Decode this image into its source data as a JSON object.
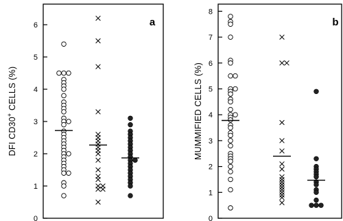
{
  "chart_data": [
    {
      "type": "scatter",
      "panel_label": "a",
      "ylabel_main": "DFI  CD30",
      "ylabel_sup": "+",
      "ylabel_rest": " CELLS  (%)",
      "ylim": [
        0,
        6.5
      ],
      "yticks": [
        "0",
        "1",
        "2",
        "3",
        "4",
        "5",
        "6"
      ],
      "grid": false,
      "series": [
        {
          "marker": "circle-open",
          "values": [
            5.4,
            4.5,
            4.5,
            4.5,
            4.3,
            4.2,
            4.1,
            4.0,
            3.8,
            3.6,
            3.5,
            3.4,
            3.3,
            3.1,
            3.0,
            3.0,
            2.9,
            2.7,
            2.6,
            2.5,
            2.4,
            2.3,
            2.2,
            2.1,
            2.0,
            2.0,
            1.9,
            1.8,
            1.7,
            1.6,
            1.5,
            1.4,
            1.4,
            1.1,
            1.0,
            0.7
          ],
          "mean": 2.72
        },
        {
          "marker": "cross",
          "values": [
            6.2,
            5.5,
            4.7,
            3.3,
            2.6,
            2.5,
            2.4,
            2.3,
            2.2,
            2.1,
            2.0,
            1.8,
            1.5,
            1.3,
            1.2,
            1.0,
            1.0,
            0.9,
            0.9,
            0.5
          ],
          "mean": 2.27
        },
        {
          "marker": "circle-filled",
          "values": [
            3.1,
            2.9,
            2.7,
            2.6,
            2.5,
            2.4,
            2.3,
            2.2,
            2.1,
            2.0,
            1.9,
            1.8,
            1.8,
            1.7,
            1.6,
            1.5,
            1.4,
            1.3,
            1.2,
            1.1,
            1.0,
            0.7
          ],
          "mean": 1.87
        }
      ]
    },
    {
      "type": "scatter",
      "panel_label": "b",
      "ylabel_main": "MUMMIFIED  CELLS  (%)",
      "ylim": [
        0,
        8.1
      ],
      "yticks": [
        "0",
        "1",
        "2",
        "3",
        "4",
        "5",
        "6",
        "7",
        "8"
      ],
      "grid": false,
      "series": [
        {
          "marker": "circle-open",
          "values": [
            7.8,
            7.6,
            7.5,
            7.0,
            6.1,
            6.0,
            5.5,
            5.5,
            5.0,
            5.0,
            4.9,
            4.8,
            4.6,
            4.5,
            4.2,
            4.0,
            4.0,
            3.9,
            3.8,
            3.6,
            3.5,
            3.3,
            3.2,
            3.0,
            2.8,
            2.5,
            2.4,
            2.3,
            2.2,
            2.0,
            1.8,
            1.5,
            1.1,
            0.4
          ],
          "mean": 3.78
        },
        {
          "marker": "cross",
          "values": [
            7.0,
            6.0,
            6.0,
            3.7,
            3.0,
            2.6,
            2.1,
            1.9,
            1.6,
            1.5,
            1.4,
            1.3,
            1.2,
            1.1,
            1.0,
            0.9,
            0.8,
            0.6
          ],
          "mean": 2.4
        },
        {
          "marker": "circle-filled",
          "values": [
            4.9,
            2.3,
            2.0,
            1.9,
            1.8,
            1.7,
            1.6,
            1.4,
            1.3,
            1.1,
            1.0,
            0.7,
            0.5,
            0.5,
            0.5
          ],
          "mean": 1.47
        }
      ]
    }
  ]
}
